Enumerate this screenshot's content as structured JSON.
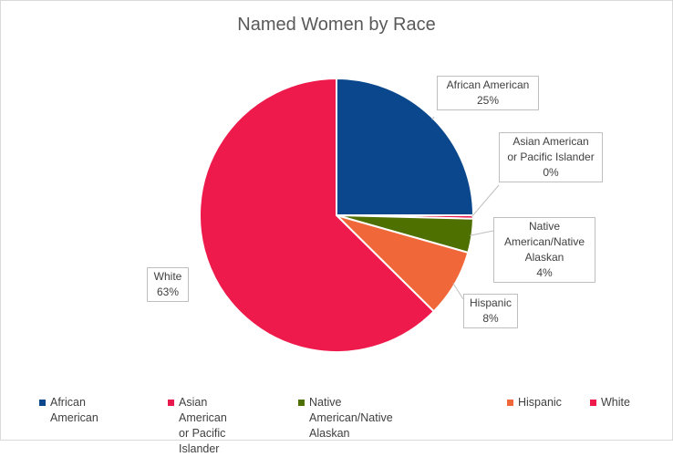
{
  "chart_data": {
    "type": "pie",
    "title": "Named Women by Race",
    "slices": [
      {
        "name": "African American",
        "label_name": "African American",
        "value": 25,
        "label_value": "25%",
        "color": "#0b478c"
      },
      {
        "name": "Asian American or Pacific Islander",
        "label_name": "Asian American\nor Pacific Islander",
        "value": 0.4,
        "label_value": "0%",
        "color": "#e8194d"
      },
      {
        "name": "Native American/Native Alaskan",
        "label_name": "Native\nAmerican/Native\nAlaskan",
        "value": 4,
        "label_value": "4%",
        "color": "#4e7000"
      },
      {
        "name": "Hispanic",
        "label_name": "Hispanic",
        "value": 8,
        "label_value": "8%",
        "color": "#f0683a"
      },
      {
        "name": "White",
        "label_name": "White",
        "value": 62.6,
        "label_value": "63%",
        "color": "#ee1a4b"
      }
    ],
    "legend": {
      "position": "bottom",
      "items": [
        {
          "label": "African American",
          "color": "#0b478c"
        },
        {
          "label": "Asian American\nor Pacific Islander",
          "color": "#e8194d"
        },
        {
          "label": "Native American/Native Alaskan",
          "color": "#4e7000"
        },
        {
          "label": "Hispanic",
          "color": "#f0683a"
        },
        {
          "label": "White",
          "color": "#ee1a4b"
        }
      ]
    }
  }
}
